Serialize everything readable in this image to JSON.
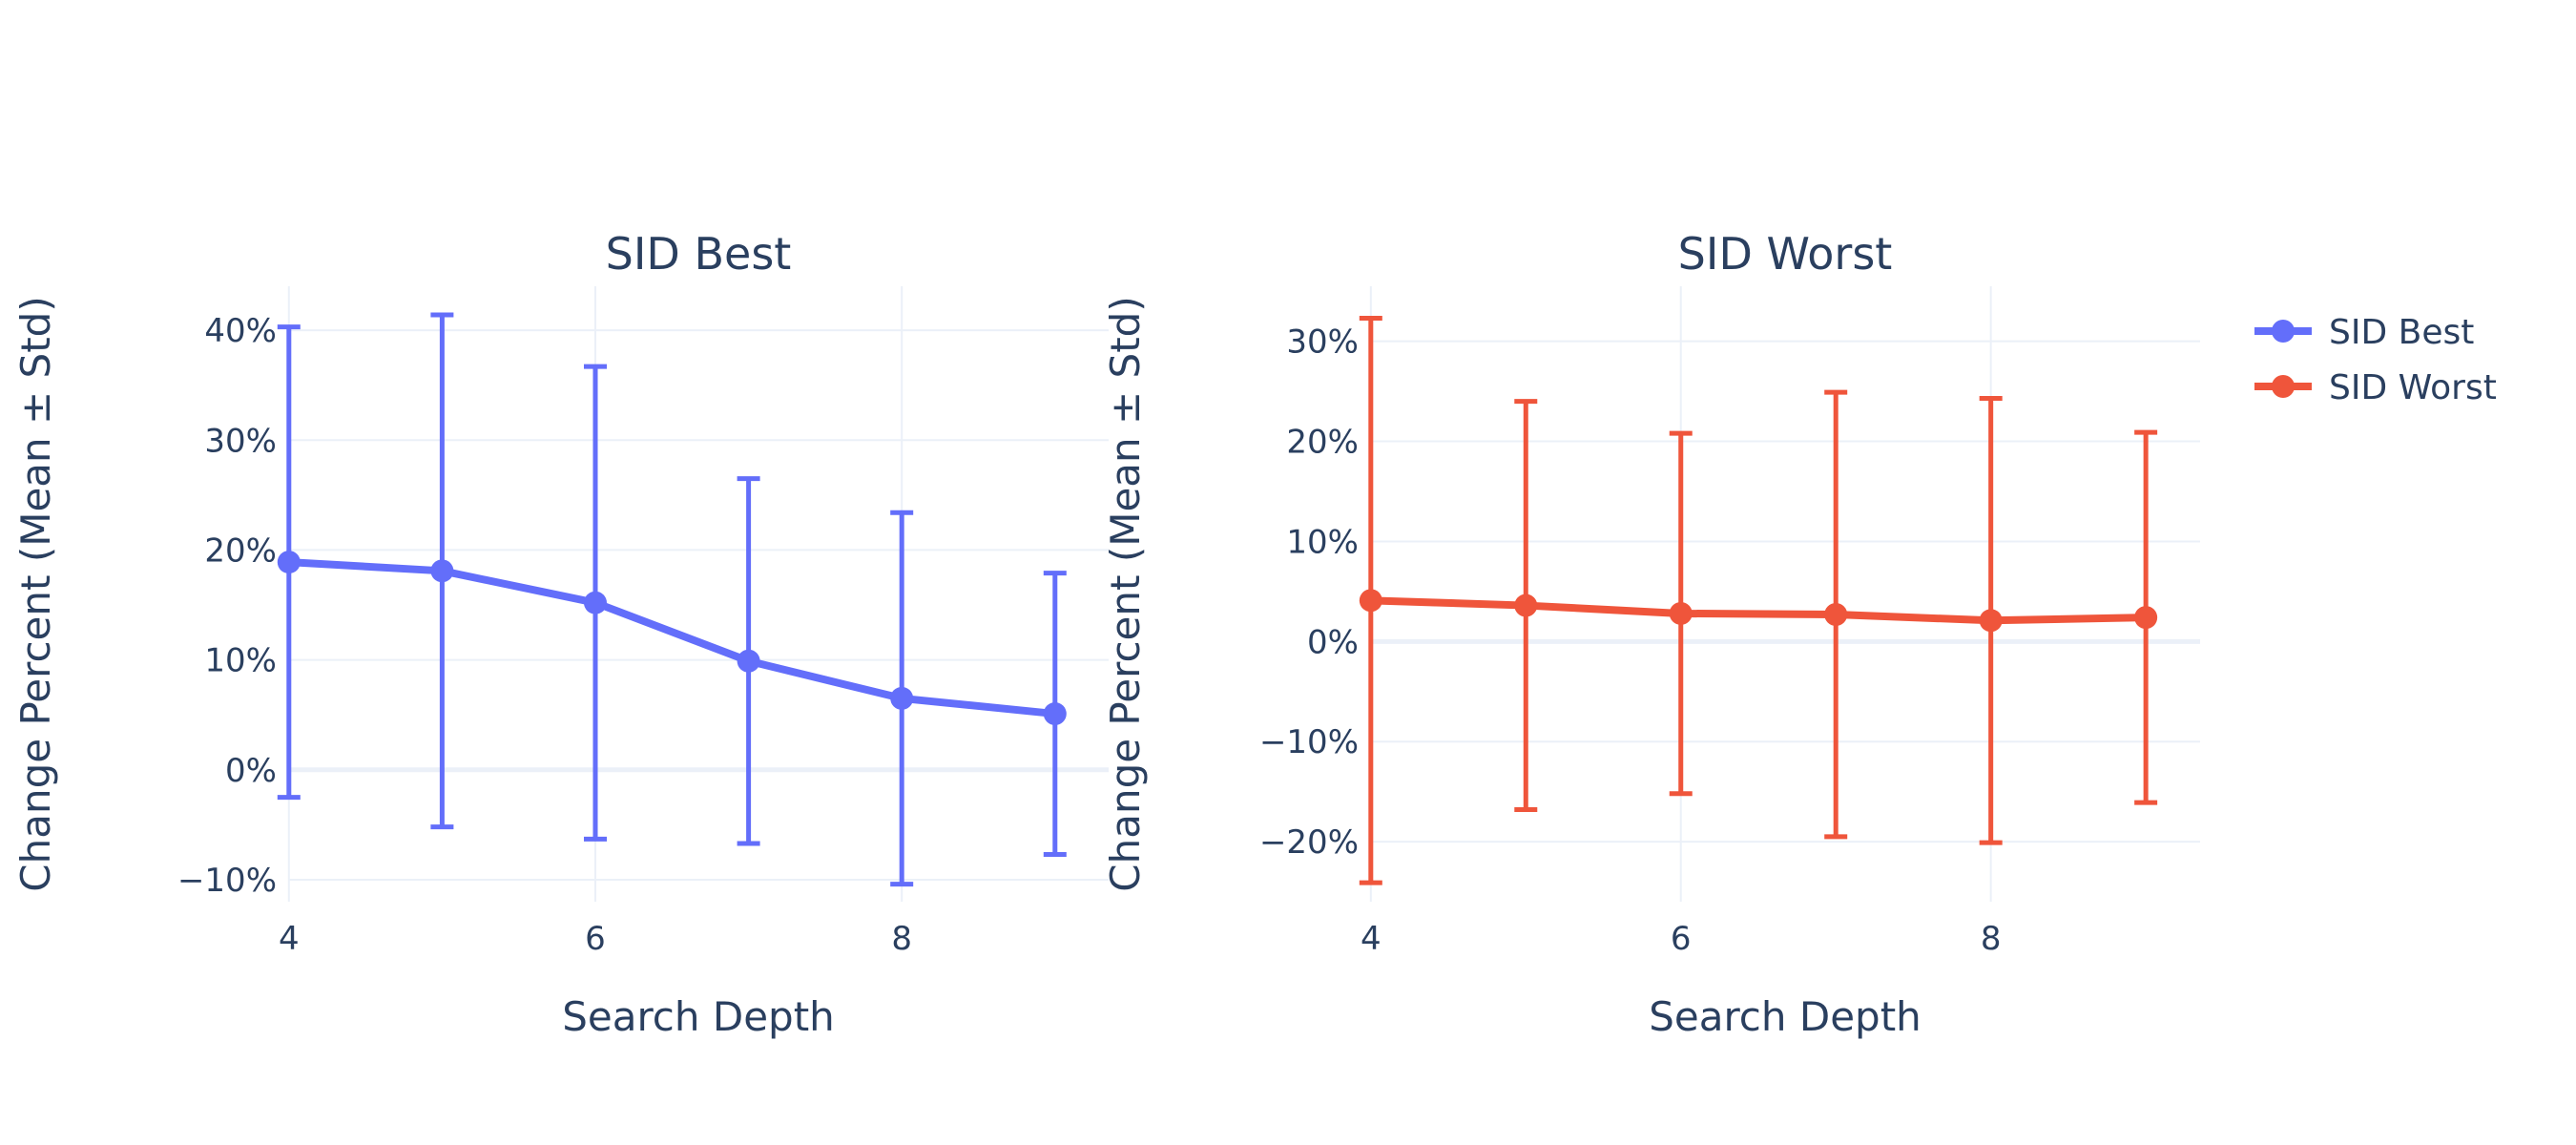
{
  "chart_data": [
    {
      "type": "line",
      "title": "SID Best",
      "xlabel": "Search Depth",
      "ylabel": "Change Percent (Mean ± Std)",
      "x": [
        4,
        5,
        6,
        7,
        8,
        9
      ],
      "xlim": [
        3.995,
        9.35
      ],
      "ylim": [
        -0.12,
        0.44
      ],
      "xticks": [
        4,
        6,
        8
      ],
      "yticks": [
        -0.1,
        0,
        0.1,
        0.2,
        0.3,
        0.4
      ],
      "ytick_labels": [
        "−10%",
        "0%",
        "10%",
        "20%",
        "30%",
        "40%"
      ],
      "grid": true,
      "series": [
        {
          "name": "SID Best",
          "color": "#636efa",
          "values": [
            0.189,
            0.181,
            0.152,
            0.099,
            0.065,
            0.051
          ],
          "error": [
            0.214,
            0.233,
            0.215,
            0.166,
            0.169,
            0.128
          ]
        }
      ]
    },
    {
      "type": "line",
      "title": "SID Worst",
      "xlabel": "Search Depth",
      "ylabel": "Change Percent (Mean ± Std)",
      "x": [
        4,
        5,
        6,
        7,
        8,
        9
      ],
      "xlim": [
        3.995,
        9.35
      ],
      "ylim": [
        -0.26,
        0.355
      ],
      "xticks": [
        4,
        6,
        8
      ],
      "yticks": [
        -0.2,
        -0.1,
        0,
        0.1,
        0.2,
        0.3
      ],
      "ytick_labels": [
        "−20%",
        "−10%",
        "0%",
        "10%",
        "20%",
        "30%"
      ],
      "grid": true,
      "series": [
        {
          "name": "SID Worst",
          "color": "#ef553b",
          "values": [
            0.041,
            0.036,
            0.028,
            0.027,
            0.021,
            0.024
          ],
          "error": [
            0.282,
            0.204,
            0.18,
            0.222,
            0.222,
            0.185
          ]
        }
      ]
    }
  ],
  "legend": {
    "position": "top-right",
    "items": [
      {
        "label": "SID Best",
        "color": "#636efa"
      },
      {
        "label": "SID Worst",
        "color": "#ef553b"
      }
    ]
  }
}
